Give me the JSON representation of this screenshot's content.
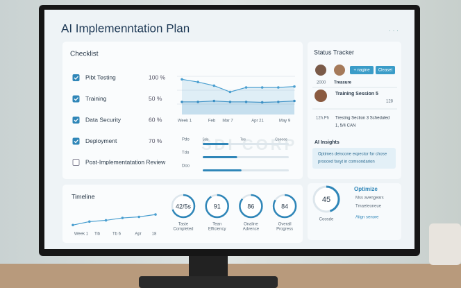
{
  "header": {
    "title": "AI Implemenntation Plan"
  },
  "watermark": "SDI CORP",
  "checklist": {
    "title": "Checklist",
    "items": [
      {
        "label": "Pibt Testing",
        "checked": true,
        "percent": "100 %"
      },
      {
        "label": "Training",
        "checked": true,
        "percent": "50 %"
      },
      {
        "label": "Data Security",
        "checked": true,
        "percent": "60 %"
      },
      {
        "label": "Deployment",
        "checked": true,
        "percent": "70 %"
      },
      {
        "label": "Post-Implementatation Review",
        "checked": false,
        "percent": null
      }
    ]
  },
  "trend_chart": {
    "x_labels": [
      "Week 1",
      "Feb",
      "Mar 7",
      "Apr 21",
      "May 9"
    ],
    "ylim": [
      0,
      100
    ],
    "series": [
      {
        "color": "#4a9fd0",
        "values": [
          78,
          72,
          64,
          50,
          60,
          60,
          60,
          62
        ]
      },
      {
        "color": "#3a8fc4",
        "values": [
          28,
          28,
          30,
          28,
          28,
          27,
          28,
          30
        ]
      }
    ]
  },
  "progress_rows": {
    "column_labels": [
      "Sdo",
      "Tee",
      "Ceeeee"
    ],
    "rows": [
      {
        "label": "Pdo",
        "value": 30
      },
      {
        "label": "Tdo",
        "value": 40
      },
      {
        "label": "Doo",
        "value": 45
      }
    ]
  },
  "status_tracker": {
    "title": "Status Tracker",
    "buttons": [
      "+ nagine",
      "Cleaset"
    ],
    "row1": {
      "meta": "2000",
      "label": "Treasure"
    },
    "row2": {
      "label": "Training Session 5",
      "meta": "128"
    },
    "row3": {
      "meta": "12h.Ph",
      "label": "Tresting Section 3 Scheduled",
      "sub": "1, 5/4 CAN"
    }
  },
  "ai_insights": {
    "title": "AI Insights",
    "lines": [
      "Optimes deiscone expector for chose",
      "prooced fasyt in comsondarion"
    ]
  },
  "timeline": {
    "title": "Timeline",
    "x_labels": [
      "Week 1",
      "Tib",
      "Tb 6",
      "Apr",
      "18"
    ],
    "ylim": [
      0,
      100
    ],
    "color": "#4a9fd0",
    "values": [
      15,
      28,
      33,
      42,
      46,
      55
    ]
  },
  "rings": [
    {
      "label": "42/5s",
      "progress": 70,
      "caption": [
        "Taste",
        "Completed"
      ]
    },
    {
      "label": "91",
      "progress": 91,
      "caption": [
        "Tean",
        "Efficiency"
      ]
    },
    {
      "label": "86",
      "progress": 86,
      "caption": [
        "Onaline",
        "Advence"
      ]
    },
    {
      "label": "84",
      "progress": 84,
      "caption": [
        "Overall",
        "Progress"
      ]
    }
  ],
  "optimize": {
    "ring": {
      "label": "45",
      "progress": 45
    },
    "title": "Optimize",
    "lines": [
      "Mss avengears",
      "Tmaeteoneue"
    ],
    "caption": "Coosde",
    "link": "Aiign senore"
  }
}
